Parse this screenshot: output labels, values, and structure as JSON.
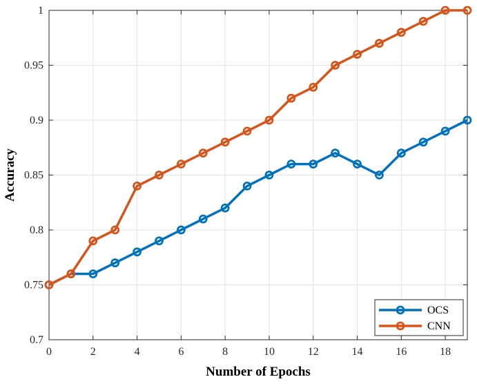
{
  "chart_data": {
    "type": "line",
    "title": "",
    "xlabel": "Number of Epochs",
    "ylabel": "Accuracy",
    "xlim": [
      0,
      19
    ],
    "ylim": [
      0.7,
      1.0
    ],
    "xticks": [
      0,
      2,
      4,
      6,
      8,
      10,
      12,
      14,
      16,
      18
    ],
    "xtick_labels": [
      "0",
      "2",
      "4",
      "6",
      "8",
      "10",
      "12",
      "14",
      "16",
      "18"
    ],
    "yticks": [
      0.7,
      0.75,
      0.8,
      0.85,
      0.9,
      0.95,
      1.0
    ],
    "ytick_labels": [
      "0.7",
      "0.75",
      "0.8",
      "0.85",
      "0.9",
      "0.95",
      "1"
    ],
    "grid": true,
    "legend_position": "bottom-right",
    "x": [
      0,
      1,
      2,
      3,
      4,
      5,
      6,
      7,
      8,
      9,
      10,
      11,
      12,
      13,
      14,
      15,
      16,
      17,
      18,
      19
    ],
    "series": [
      {
        "name": "OCS",
        "color": "#0072BD",
        "marker": "circle",
        "values": [
          0.75,
          0.76,
          0.76,
          0.77,
          0.78,
          0.79,
          0.8,
          0.81,
          0.82,
          0.84,
          0.85,
          0.86,
          0.86,
          0.87,
          0.86,
          0.85,
          0.87,
          0.88,
          0.89,
          0.9
        ]
      },
      {
        "name": "CNN",
        "color": "#D95319",
        "marker": "circle",
        "values": [
          0.75,
          0.76,
          0.79,
          0.8,
          0.84,
          0.85,
          0.86,
          0.87,
          0.88,
          0.89,
          0.9,
          0.92,
          0.93,
          0.95,
          0.96,
          0.97,
          0.98,
          0.99,
          1.0,
          1.0
        ]
      }
    ]
  }
}
